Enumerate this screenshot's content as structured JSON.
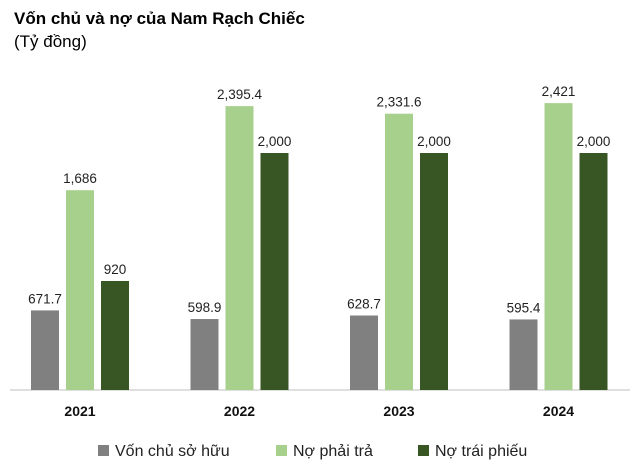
{
  "chart_data": {
    "type": "bar",
    "title": "Vốn chủ và nợ của Nam Rạch Chiếc",
    "subtitle": "(Tỷ đồng)",
    "categories": [
      "2021",
      "2022",
      "2023",
      "2024"
    ],
    "series": [
      {
        "name": "Vốn chủ sở hữu",
        "values": [
          671.7,
          598.9,
          628.7,
          595.4
        ],
        "labels": [
          "671.7",
          "598.9",
          "628.7",
          "595.4"
        ],
        "color": "#808080"
      },
      {
        "name": "Nợ phải trả",
        "values": [
          1686,
          2395.4,
          2331.6,
          2421
        ],
        "labels": [
          "1,686",
          "2,395.4",
          "2,331.6",
          "2,421"
        ],
        "color": "#a8d08d"
      },
      {
        "name": "Nợ trái phiếu",
        "values": [
          920,
          2000,
          2000,
          2000
        ],
        "labels": [
          "920",
          "2,000",
          "2,000",
          "2,000"
        ],
        "color": "#375623"
      }
    ],
    "ylim": [
      0,
      2500
    ],
    "grid": false,
    "legend": "bottom"
  }
}
